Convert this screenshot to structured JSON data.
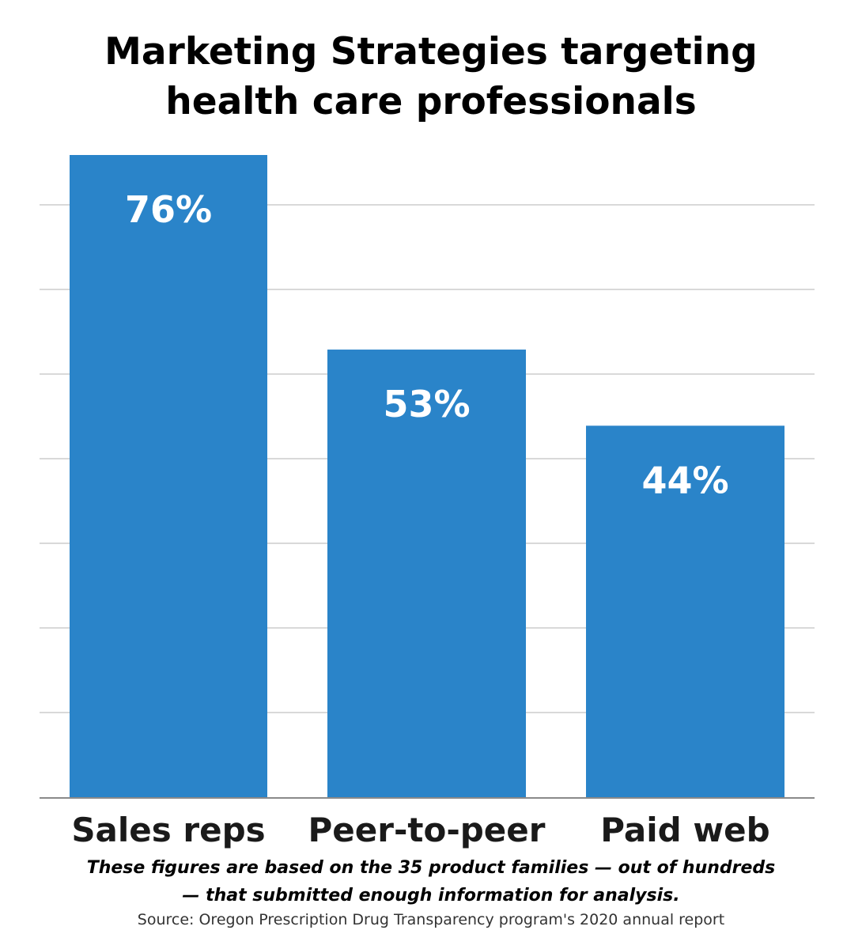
{
  "chart_data": {
    "type": "bar",
    "title": "Marketing Strategies targeting health care professionals",
    "title_lines": [
      "Marketing Strategies targeting",
      "health care professionals"
    ],
    "categories": [
      "Sales reps",
      "Peer-to-peer",
      "Paid web"
    ],
    "values": [
      76,
      53,
      44
    ],
    "value_labels": [
      "76%",
      "53%",
      "44%"
    ],
    "ylim": [
      0,
      76
    ],
    "grid": true,
    "bar_color": "#2a84c9",
    "label_color": "#ffffff",
    "grid_color": "#d9d9d9"
  },
  "footnote_lines": [
    "These figures are based on the 35 product families — out of hundreds",
    "— that submitted  enough information for analysis."
  ],
  "source": "Source: Oregon Prescription Drug Transparency program's 2020 annual report"
}
